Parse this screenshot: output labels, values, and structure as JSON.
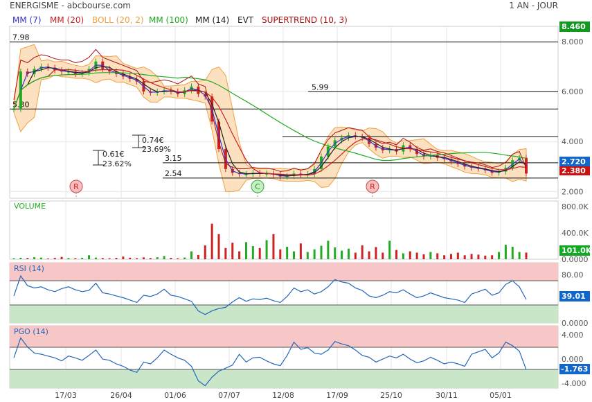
{
  "header": {
    "title": "ENERGISME - abcbourse.com",
    "period": "1 AN - JOUR"
  },
  "indicators": [
    {
      "label": "MM (7)",
      "color": "#3333cc"
    },
    {
      "label": "MM (20)",
      "color": "#cc2222"
    },
    {
      "label": "BOLL (20, 2)",
      "color": "#f0a040"
    },
    {
      "label": "MM (100)",
      "color": "#22aa22"
    },
    {
      "label": "MM (14)",
      "color": "#222222"
    },
    {
      "label": "EVT",
      "color": "#222222"
    },
    {
      "label": "SUPERTREND (10, 3)",
      "color": "#aa1111"
    }
  ],
  "colors": {
    "price": "#22aa22",
    "up": "#22aa22",
    "down": "#cc2222",
    "mm7": "#3333cc",
    "mm20": "#cc2222",
    "mm100": "#22aa22",
    "mm14": "#222222",
    "boll": "#f0a040",
    "bollFill": "#fbd9b0",
    "supertrend": "#aa1111",
    "rsi": "#2266bb",
    "overbought": "#f7c6c6",
    "oversold": "#c9e6c9",
    "lastPrice": "#1166cc",
    "lastVolume": "#11aa22"
  },
  "chart_data": [
    {
      "type": "candlestick",
      "panel": "price",
      "ylim": [
        2.0,
        8.46
      ],
      "yticks": [
        "8.000",
        "6.000",
        "4.000",
        "2.000"
      ],
      "xticks": [
        "17/03",
        "26/04",
        "01/06",
        "07/07",
        "12/08",
        "17/09",
        "25/10",
        "30/11",
        "05/01"
      ],
      "last_price": "2.720",
      "max_price": "8.460",
      "min_price": "2.380",
      "levels": [
        "7.98",
        "5.99",
        "5.30",
        "3.15",
        "2.54"
      ],
      "level_values": [
        7.98,
        5.99,
        5.3,
        3.15,
        2.54,
        4.2
      ],
      "annotations": [
        {
          "text1": "0.74€",
          "text2": "23.69%"
        },
        {
          "text1": "0.61€",
          "text2": "23.62%"
        }
      ],
      "signals": [
        "R",
        "C",
        "R"
      ],
      "close_series": [
        5.3,
        6.8,
        6.7,
        6.9,
        7.0,
        6.95,
        6.85,
        6.8,
        6.8,
        6.7,
        6.75,
        6.9,
        7.2,
        6.9,
        6.8,
        6.7,
        6.6,
        6.5,
        6.4,
        6.0,
        5.95,
        6.0,
        6.05,
        6.0,
        5.9,
        6.05,
        6.2,
        5.9,
        5.8,
        4.8,
        3.7,
        2.9,
        2.75,
        2.7,
        2.7,
        2.75,
        2.72,
        2.72,
        2.68,
        2.6,
        2.62,
        2.72,
        2.65,
        2.7,
        2.9,
        3.4,
        3.8,
        4.05,
        4.15,
        4.25,
        4.2,
        4.15,
        3.9,
        3.75,
        3.65,
        3.7,
        3.6,
        3.85,
        3.7,
        3.5,
        3.4,
        3.45,
        3.35,
        3.3,
        3.2,
        3.1,
        3.0,
        2.95,
        2.92,
        2.85,
        2.75,
        2.8,
        2.95,
        3.25,
        3.35,
        2.72
      ]
    },
    {
      "type": "bar",
      "panel": "volume",
      "label": "VOLUME",
      "yticks": [
        "800.0K",
        "400.0K",
        "0.0000"
      ],
      "ylim": [
        0,
        800
      ],
      "last_value": "101.0K",
      "values": [
        15,
        22,
        18,
        30,
        25,
        12,
        20,
        35,
        18,
        15,
        22,
        60,
        25,
        18,
        14,
        20,
        40,
        22,
        15,
        28,
        18,
        30,
        48,
        20,
        14,
        26,
        120,
        65,
        210,
        540,
        380,
        170,
        250,
        120,
        260,
        200,
        170,
        290,
        380,
        150,
        190,
        120,
        240,
        110,
        150,
        205,
        280,
        180,
        130,
        160,
        100,
        210,
        120,
        185,
        100,
        280,
        140,
        90,
        120,
        100,
        75,
        110,
        90,
        60,
        80,
        100,
        60,
        80,
        70,
        55,
        60,
        110,
        220,
        190,
        110,
        101
      ]
    },
    {
      "type": "line",
      "panel": "rsi",
      "label": "RSI (14)",
      "yticks": [
        "80.00",
        "0.0000"
      ],
      "ylim": [
        0,
        100
      ],
      "overbought": 70,
      "oversold": 30,
      "last_value": "39.01",
      "values": [
        45,
        78,
        62,
        58,
        60,
        55,
        52,
        57,
        60,
        55,
        52,
        54,
        66,
        50,
        48,
        45,
        42,
        38,
        34,
        46,
        44,
        48,
        56,
        46,
        44,
        40,
        36,
        20,
        14,
        20,
        24,
        26,
        35,
        42,
        36,
        40,
        39,
        41,
        37,
        34,
        44,
        58,
        52,
        55,
        48,
        52,
        60,
        72,
        68,
        66,
        58,
        54,
        45,
        42,
        46,
        52,
        50,
        55,
        48,
        42,
        45,
        50,
        46,
        42,
        40,
        38,
        34,
        48,
        52,
        56,
        46,
        50,
        64,
        70,
        60,
        39
      ]
    },
    {
      "type": "line",
      "panel": "pgo",
      "label": "PGO (14)",
      "yticks": [
        "4.000",
        "0.000",
        "-4.000"
      ],
      "ylim": [
        -4.8,
        5.5
      ],
      "overbought": 1.7,
      "oversold": -2.3,
      "last_value": "-1.763",
      "values": [
        0.2,
        3.5,
        2.0,
        1.0,
        0.8,
        0.5,
        0.2,
        -0.3,
        0.5,
        0.2,
        -0.2,
        0.6,
        1.5,
        0.0,
        -0.2,
        -0.8,
        -1.2,
        -1.8,
        -2.2,
        -0.5,
        -0.8,
        0.2,
        1.5,
        0.8,
        0.2,
        -0.2,
        -1.2,
        -3.6,
        -4.4,
        -3.0,
        -2.0,
        -1.5,
        -1.0,
        0.8,
        -0.5,
        0.2,
        0.3,
        -0.3,
        -0.8,
        -1.1,
        0.6,
        2.8,
        1.6,
        1.9,
        1.0,
        0.8,
        1.5,
        2.9,
        2.5,
        2.2,
        1.5,
        0.6,
        0.3,
        -0.5,
        0.0,
        0.5,
        0.2,
        0.8,
        0.0,
        -0.6,
        -0.3,
        0.3,
        -0.2,
        -0.8,
        -0.5,
        -0.8,
        -1.2,
        0.8,
        1.2,
        1.6,
        0.2,
        1.0,
        2.8,
        2.2,
        1.3,
        -1.76
      ]
    }
  ]
}
